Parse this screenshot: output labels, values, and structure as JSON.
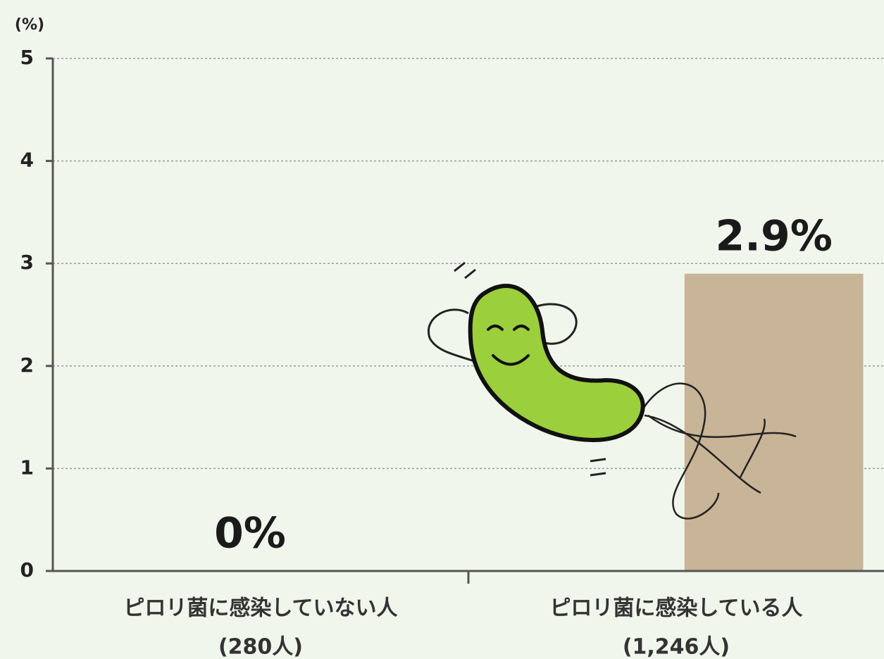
{
  "chart_data": {
    "type": "bar",
    "ylabel": "(%)",
    "categories": [
      [
        "ピロリ菌に感染していない人",
        "(280人)"
      ],
      [
        "ピロリ菌に感染している人",
        "(1,246人)"
      ]
    ],
    "values": [
      0,
      2.9
    ],
    "value_labels": [
      "0%",
      "2.9%"
    ],
    "color": "#c8b496",
    "ylim": [
      0,
      5
    ],
    "yticks": [
      0,
      1,
      2,
      3,
      4,
      5
    ],
    "grid": true
  }
}
